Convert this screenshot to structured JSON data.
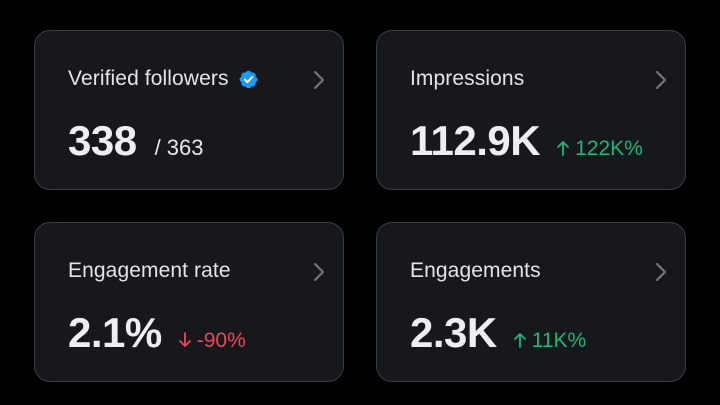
{
  "colors": {
    "background": "#000000",
    "card": "#17181c",
    "up": "#1fb47a",
    "down": "#f0435a",
    "verified": "#1d9bf0"
  },
  "cards": [
    {
      "title": "Verified followers",
      "value": "338",
      "sub": "/ 363",
      "icons": [
        "verified-badge-icon",
        "chevron-right-icon"
      ]
    },
    {
      "title": "Impressions",
      "value": "112.9K",
      "delta": "122K%",
      "direction": "up"
    },
    {
      "title": "Engagement rate",
      "value": "2.1%",
      "delta": "-90%",
      "direction": "down"
    },
    {
      "title": "Engagements",
      "value": "2.3K",
      "delta": "11K%",
      "direction": "up"
    }
  ]
}
